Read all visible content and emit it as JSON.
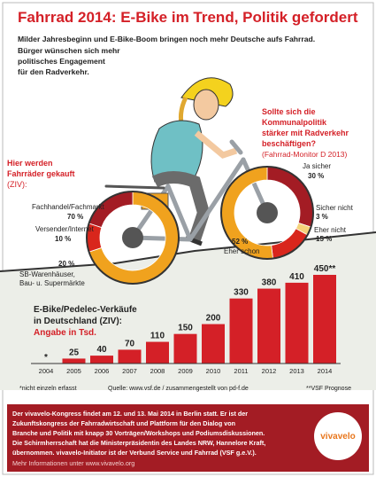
{
  "header": {
    "title": "Fahrrad 2014: E-Bike im Trend, Politik gefordert",
    "subtitle": [
      "Milder Jahresbeginn und E-Bike-Boom bringen noch mehr Deutsche aufs Fahrrad.",
      "Bürger wünschen sich mehr",
      "politisches Engagement",
      "für den Radverkehr."
    ]
  },
  "chart_data": [
    {
      "type": "bar",
      "title": [
        "E-Bike/Pedelec-Verkäufe",
        "in Deutschland (ZIV):"
      ],
      "subtitle": "Angabe in Tsd.",
      "categories": [
        "2004",
        "2005",
        "2006",
        "2007",
        "2008",
        "2009",
        "2010",
        "2011",
        "2012",
        "2013",
        "2014"
      ],
      "values": [
        null,
        25,
        40,
        70,
        110,
        150,
        200,
        330,
        380,
        410,
        450
      ],
      "value_labels": [
        "*",
        "25",
        "40",
        "70",
        "110",
        "150",
        "200",
        "330",
        "380",
        "410",
        "450**"
      ],
      "color": "#d42027"
    },
    {
      "type": "donut",
      "title": [
        "Hier werden",
        "Fahrräder gekauft"
      ],
      "subtitle": "(ZIV):",
      "categories": [
        "Fachhandel/Fachmarkt",
        "Versender/Internet",
        [
          "SB-Warenhäuser,",
          "Bau- u. Supermärkte"
        ]
      ],
      "values": [
        70,
        10,
        20
      ],
      "value_labels": [
        "70 %",
        "10 %",
        "20 %"
      ],
      "colors": [
        "#f0a21e",
        "#d9261c",
        "#a31c24"
      ]
    },
    {
      "type": "donut",
      "title": [
        "Sollte sich die",
        "Kommunalpolitik",
        "stärker mit Radverkehr",
        "beschäftigen?"
      ],
      "subtitle": "(Fahrrad-Monitor D 2013)",
      "categories": [
        "Ja sicher",
        "Sicher nicht",
        "Eher nicht",
        "Eher schon"
      ],
      "values": [
        30,
        3,
        15,
        52
      ],
      "value_labels": [
        "30 %",
        "3 %",
        "15 %",
        "52 %"
      ],
      "colors": [
        "#a31c24",
        "#f5d27a",
        "#d9261c",
        "#f0a21e"
      ]
    }
  ],
  "notes": [
    "*nicht einzeln erfasst",
    "Quelle: www.vsf.de / zusammengestellt von pd-f.de",
    "**VSF Prognose"
  ],
  "footer": {
    "lines": [
      "Der vivavelo-Kongress findet am 12. und 13. Mai 2014 in Berlin statt. Er ist der",
      "Zukunftskongress der Fahrradwirtschaft und Plattform für den Dialog von",
      "Branche und Politik mit knapp 30 Vorträgen/Workshops und Podiumsdiskussionen.",
      "Die Schirmherrschaft hat die Ministerpräsidentin des Landes NRW, Hannelore Kraft,",
      "übernommen. vivavelo-Initiator ist der Verbund Service und Fahrrad (VSF g.e.V.)."
    ],
    "more": "Mehr Informationen unter www.vivavelo.org",
    "logo": "vivavelo"
  }
}
